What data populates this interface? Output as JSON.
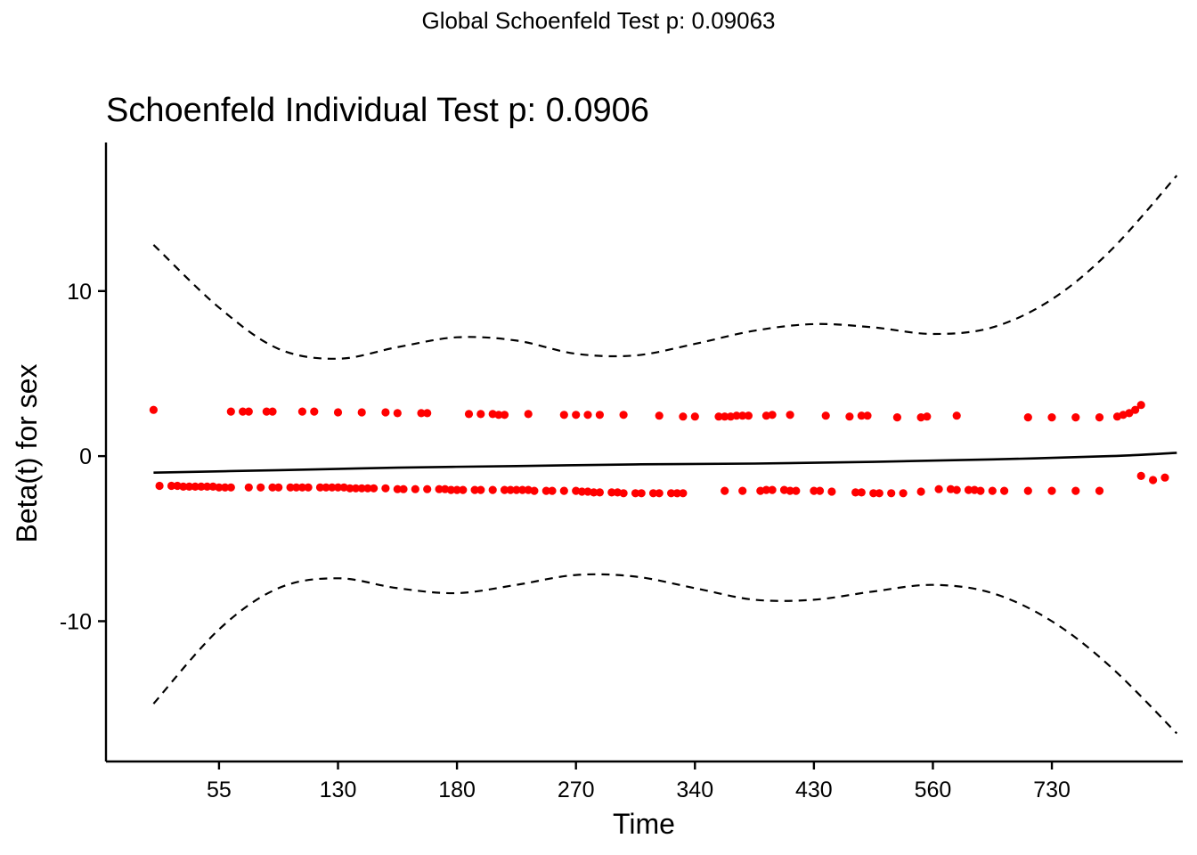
{
  "chart_data": {
    "type": "scatter",
    "suptitle": "Global Schoenfeld Test p: 0.09063",
    "title": "Schoenfeld Individual Test p: 0.0906",
    "xlabel": "Time",
    "ylabel": "Beta(t) for sex",
    "x_scale": "transformed (km)",
    "x_ticks": [
      "55",
      "130",
      "180",
      "270",
      "340",
      "430",
      "560",
      "730"
    ],
    "x_tick_positions": [
      2,
      3,
      4,
      5,
      6,
      7,
      8,
      9
    ],
    "xlim": [
      1.05,
      10.1
    ],
    "y_ticks": [
      -10,
      0,
      10
    ],
    "ylim": [
      -18.5,
      19
    ],
    "grid": false,
    "colors": {
      "points": "#ff0000",
      "lines": "#000000"
    },
    "fit": {
      "x": [
        1.45,
        2.5,
        3.5,
        4.5,
        5.5,
        6.5,
        7.5,
        8.5,
        9.5,
        10.05
      ],
      "y": [
        -1.0,
        -0.85,
        -0.7,
        -0.6,
        -0.5,
        -0.45,
        -0.35,
        -0.2,
        0.0,
        0.2
      ]
    },
    "upper_ci": {
      "x": [
        1.45,
        2.0,
        2.5,
        3.0,
        3.5,
        4.0,
        4.5,
        5.0,
        5.5,
        6.0,
        6.5,
        7.0,
        7.5,
        8.0,
        8.5,
        9.0,
        9.5,
        10.05
      ],
      "y": [
        12.8,
        9.0,
        6.5,
        5.9,
        6.6,
        7.2,
        7.0,
        6.2,
        6.1,
        6.8,
        7.6,
        8.0,
        7.8,
        7.4,
        7.8,
        9.5,
        12.5,
        17.0
      ]
    },
    "lower_ci": {
      "x": [
        1.45,
        2.0,
        2.5,
        3.0,
        3.5,
        4.0,
        4.5,
        5.0,
        5.5,
        6.0,
        6.5,
        7.0,
        7.5,
        8.0,
        8.5,
        9.0,
        9.5,
        10.05
      ],
      "y": [
        -15.0,
        -10.5,
        -8.0,
        -7.4,
        -8.0,
        -8.3,
        -7.8,
        -7.2,
        -7.3,
        -8.0,
        -8.7,
        -8.7,
        -8.2,
        -7.8,
        -8.3,
        -10.0,
        -12.8,
        -16.8
      ]
    },
    "points_upper": {
      "x": [
        1.45,
        2.1,
        2.2,
        2.25,
        2.4,
        2.45,
        2.7,
        2.8,
        3.0,
        3.2,
        3.4,
        3.5,
        3.7,
        3.75,
        4.1,
        4.2,
        4.3,
        4.35,
        4.4,
        4.6,
        4.9,
        5.0,
        5.1,
        5.2,
        5.4,
        5.7,
        5.9,
        6.0,
        6.2,
        6.25,
        6.3,
        6.35,
        6.4,
        6.45,
        6.6,
        6.65,
        6.8,
        7.1,
        7.3,
        7.4,
        7.45,
        7.7,
        7.9,
        7.95,
        8.2,
        8.8,
        9.0,
        9.2,
        9.4,
        9.55,
        9.6,
        9.65,
        9.7,
        9.75
      ],
      "y": [
        2.8,
        2.7,
        2.7,
        2.7,
        2.7,
        2.7,
        2.7,
        2.7,
        2.65,
        2.65,
        2.65,
        2.6,
        2.6,
        2.6,
        2.55,
        2.55,
        2.55,
        2.5,
        2.5,
        2.55,
        2.5,
        2.5,
        2.5,
        2.5,
        2.5,
        2.45,
        2.4,
        2.4,
        2.4,
        2.4,
        2.4,
        2.45,
        2.45,
        2.45,
        2.45,
        2.5,
        2.5,
        2.45,
        2.4,
        2.45,
        2.45,
        2.35,
        2.35,
        2.4,
        2.45,
        2.35,
        2.35,
        2.35,
        2.35,
        2.4,
        2.5,
        2.6,
        2.8,
        3.1
      ]
    },
    "points_lower": {
      "x": [
        1.5,
        1.6,
        1.65,
        1.7,
        1.75,
        1.8,
        1.85,
        1.9,
        1.95,
        2.0,
        2.05,
        2.1,
        2.25,
        2.35,
        2.45,
        2.5,
        2.6,
        2.65,
        2.7,
        2.75,
        2.85,
        2.9,
        2.95,
        3.0,
        3.05,
        3.1,
        3.15,
        3.2,
        3.25,
        3.3,
        3.4,
        3.5,
        3.55,
        3.65,
        3.75,
        3.85,
        3.9,
        3.95,
        4.0,
        4.05,
        4.15,
        4.2,
        4.3,
        4.4,
        4.45,
        4.5,
        4.55,
        4.6,
        4.65,
        4.75,
        4.8,
        4.9,
        5.0,
        5.05,
        5.1,
        5.15,
        5.2,
        5.3,
        5.35,
        5.4,
        5.5,
        5.55,
        5.65,
        5.7,
        5.8,
        5.85,
        5.9,
        6.25,
        6.4,
        6.55,
        6.6,
        6.65,
        6.75,
        6.8,
        6.85,
        7.0,
        7.05,
        7.15,
        7.35,
        7.4,
        7.5,
        7.55,
        7.65,
        7.75,
        7.9,
        8.05,
        8.15,
        8.2,
        8.3,
        8.35,
        8.4,
        8.5,
        8.6,
        8.8,
        9.0,
        9.2,
        9.4,
        9.75,
        9.85,
        9.95
      ],
      "y": [
        -1.8,
        -1.8,
        -1.8,
        -1.85,
        -1.85,
        -1.85,
        -1.85,
        -1.85,
        -1.85,
        -1.9,
        -1.9,
        -1.9,
        -1.9,
        -1.9,
        -1.9,
        -1.9,
        -1.9,
        -1.9,
        -1.9,
        -1.9,
        -1.9,
        -1.9,
        -1.9,
        -1.9,
        -1.9,
        -1.95,
        -1.95,
        -1.95,
        -1.95,
        -1.95,
        -1.95,
        -2.0,
        -2.0,
        -2.0,
        -2.0,
        -2.0,
        -2.0,
        -2.05,
        -2.05,
        -2.05,
        -2.05,
        -2.05,
        -2.05,
        -2.05,
        -2.05,
        -2.05,
        -2.05,
        -2.05,
        -2.1,
        -2.1,
        -2.1,
        -2.1,
        -2.1,
        -2.15,
        -2.15,
        -2.2,
        -2.2,
        -2.2,
        -2.2,
        -2.25,
        -2.25,
        -2.25,
        -2.25,
        -2.25,
        -2.25,
        -2.25,
        -2.25,
        -2.1,
        -2.1,
        -2.1,
        -2.05,
        -2.05,
        -2.05,
        -2.1,
        -2.1,
        -2.1,
        -2.1,
        -2.15,
        -2.2,
        -2.2,
        -2.25,
        -2.25,
        -2.25,
        -2.25,
        -2.15,
        -2.0,
        -2.0,
        -2.05,
        -2.05,
        -2.05,
        -2.1,
        -2.1,
        -2.1,
        -2.1,
        -2.1,
        -2.1,
        -2.1,
        -1.2,
        -1.45,
        -1.3
      ]
    }
  }
}
